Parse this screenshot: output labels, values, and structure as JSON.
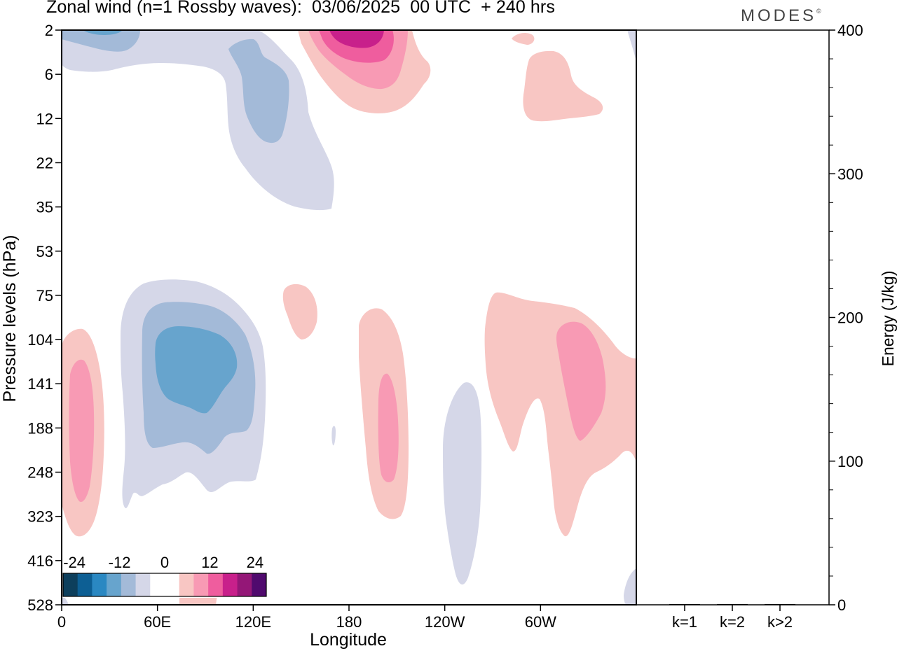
{
  "header": {
    "title": "Zonal wind (n=1 Rossby waves):  03/06/2025  00 UTC  + 240 hrs",
    "brand": "MODES",
    "brand_mark": "©"
  },
  "chart_data": [
    {
      "type": "heatmap",
      "title": "Zonal wind (n=1 Rossby waves):  03/06/2025  00 UTC  + 240 hrs",
      "xlabel": "Longitude",
      "ylabel": "Pressure levels (hPa)",
      "x_ticks": [
        "0",
        "60E",
        "120E",
        "180",
        "120W",
        "60W"
      ],
      "x_tick_values_deg_east": [
        0,
        60,
        120,
        180,
        240,
        300
      ],
      "xlim_deg_east": [
        0,
        360
      ],
      "y_ticks": [
        "2",
        "6",
        "12",
        "22",
        "35",
        "53",
        "75",
        "104",
        "141",
        "188",
        "248",
        "323",
        "416",
        "528"
      ],
      "y_axis_order": "pressure decreasing upward (top = 2 hPa, bottom = 528 hPa)",
      "colorbar": {
        "tick_labels": [
          "-24",
          "-12",
          "0",
          "12",
          "24"
        ],
        "levels": [
          -27,
          -24,
          -21,
          -18,
          -15,
          -12,
          -9,
          -6,
          -3,
          3,
          6,
          9,
          12,
          15,
          18,
          21,
          24,
          27
        ],
        "colors": [
          "#0d3f5c",
          "#0d5f94",
          "#2a88c2",
          "#67a4cd",
          "#a3bad8",
          "#d5d7e8",
          "#ffffff",
          "#ffffff",
          "#f8c6c3",
          "#f89ab4",
          "#ef5d9e",
          "#c8208b",
          "#941777",
          "#500a6e"
        ],
        "placement": "bottom-left"
      },
      "features": [
        {
          "sign": "negative",
          "lon_deg_east": [
            0,
            70
          ],
          "pressure_hPa": [
            2,
            6
          ],
          "peak": -15
        },
        {
          "sign": "negative",
          "lon_deg_east": [
            85,
            135
          ],
          "pressure_hPa": [
            4,
            30
          ],
          "peak": -9
        },
        {
          "sign": "positive",
          "lon_deg_east": [
            135,
            185
          ],
          "pressure_hPa": [
            2,
            12
          ],
          "peak": 21
        },
        {
          "sign": "positive",
          "lon_deg_east": [
            290,
            340
          ],
          "pressure_hPa": [
            3,
            12
          ],
          "peak": 6
        },
        {
          "sign": "negative",
          "lon_deg_east": [
            30,
            130
          ],
          "pressure_hPa": [
            75,
            330
          ],
          "peak": -15
        },
        {
          "sign": "positive",
          "lon_deg_east": [
            0,
            25
          ],
          "pressure_hPa": [
            110,
            330
          ],
          "peak": 9
        },
        {
          "sign": "positive",
          "lon_deg_east": [
            138,
            160
          ],
          "pressure_hPa": [
            75,
            110
          ],
          "peak": 6
        },
        {
          "sign": "positive",
          "lon_deg_east": [
            187,
            215
          ],
          "pressure_hPa": [
            95,
            330
          ],
          "peak": 9
        },
        {
          "sign": "negative",
          "lon_deg_east": [
            238,
            262
          ],
          "pressure_hPa": [
            135,
            450
          ],
          "peak": -6
        },
        {
          "sign": "positive",
          "lon_deg_east": [
            265,
            360
          ],
          "pressure_hPa": [
            75,
            340
          ],
          "peak": 9
        },
        {
          "sign": "positive",
          "lon_deg_east": [
            74,
            95
          ],
          "pressure_hPa": [
            400,
            528
          ],
          "peak": 6
        }
      ]
    },
    {
      "type": "bar",
      "ylabel": "Energy (J/kg)",
      "categories": [
        "k=1",
        "k=2",
        "k>2"
      ],
      "values": [
        0.5,
        0.5,
        0.5
      ],
      "ylim": [
        0,
        400
      ],
      "y_ticks": [
        "0",
        "100",
        "200",
        "300",
        "400"
      ]
    }
  ]
}
